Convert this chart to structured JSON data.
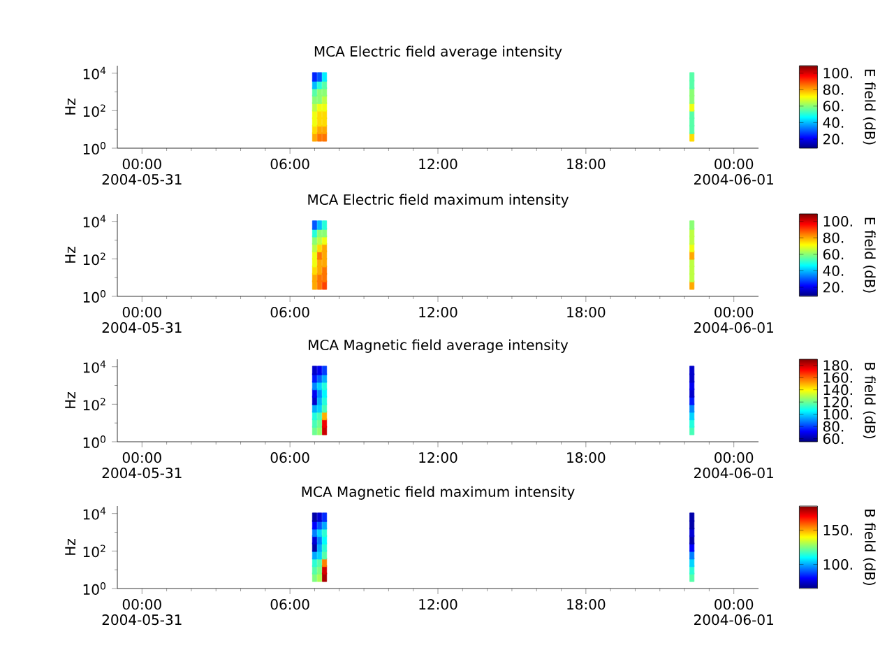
{
  "chart_data": [
    {
      "type": "scatter",
      "title": "MCA  Electric field average intensity",
      "ylabel": "Hz",
      "clabel": "E field (dB)",
      "log": "y",
      "marker": "square",
      "xlim": [
        -1,
        25
      ],
      "xticks": [
        {
          "value": 0,
          "label": "00:00 2004-05-31"
        },
        {
          "value": 6,
          "label": "06:00"
        },
        {
          "value": 12,
          "label": "12:00"
        },
        {
          "value": 18,
          "label": "18:00"
        },
        {
          "value": 24,
          "label": "00:00 2004-06-01"
        }
      ],
      "ylim": [
        1,
        25000
      ],
      "yticks": [
        {
          "value": 1,
          "label": "10$^{0}$"
        },
        {
          "value": 100,
          "label": "10$^{2}$"
        },
        {
          "value": 10000,
          "label": "10$^{4}$"
        }
      ],
      "clim": [
        9,
        109
      ],
      "cticks": [
        {
          "value": 20,
          "label": "20."
        },
        {
          "value": 40,
          "label": "40."
        },
        {
          "value": 60,
          "label": "60."
        },
        {
          "value": 80,
          "label": "80."
        },
        {
          "value": 100,
          "label": "100."
        }
      ],
      "x": [
        7.0,
        7.0,
        7.0,
        7.0,
        7.0,
        7.0,
        7.0,
        7.0,
        7.0,
        7.2,
        7.2,
        7.2,
        7.2,
        7.2,
        7.2,
        7.2,
        7.2,
        7.2,
        7.4,
        7.4,
        7.4,
        7.4,
        7.4,
        7.4,
        7.4,
        7.4,
        7.4,
        22.3,
        22.3,
        22.3,
        22.3,
        22.3,
        22.3,
        22.3,
        22.3,
        22.3
      ],
      "values": [
        4,
        10,
        25,
        63,
        160,
        400,
        1000,
        2500,
        6300,
        4,
        10,
        25,
        63,
        160,
        400,
        1000,
        2500,
        6300,
        4,
        10,
        25,
        63,
        160,
        400,
        1000,
        2500,
        6300,
        4,
        10,
        25,
        63,
        160,
        400,
        1000,
        2500,
        6300
      ],
      "cvalues": [
        80,
        75,
        70,
        70,
        65,
        60,
        55,
        40,
        25,
        85,
        80,
        75,
        75,
        70,
        60,
        60,
        50,
        30,
        85,
        80,
        75,
        75,
        70,
        65,
        60,
        55,
        45,
        75,
        55,
        55,
        55,
        70,
        60,
        60,
        55,
        55
      ]
    },
    {
      "type": "scatter",
      "title": "MCA  Electric field maximum intensity",
      "ylabel": "Hz",
      "clabel": "E field (dB)",
      "log": "y",
      "marker": "square",
      "xlim": [
        -1,
        25
      ],
      "xticks": [
        {
          "value": 0,
          "label": "00:00 2004-05-31"
        },
        {
          "value": 6,
          "label": "06:00"
        },
        {
          "value": 12,
          "label": "12:00"
        },
        {
          "value": 18,
          "label": "18:00"
        },
        {
          "value": 24,
          "label": "00:00 2004-06-01"
        }
      ],
      "ylim": [
        1,
        25000
      ],
      "yticks": [
        {
          "value": 1,
          "label": "10$^{0}$"
        },
        {
          "value": 100,
          "label": "10$^{2}$"
        },
        {
          "value": 10000,
          "label": "10$^{4}$"
        }
      ],
      "clim": [
        9,
        109
      ],
      "cticks": [
        {
          "value": 20,
          "label": "20."
        },
        {
          "value": 40,
          "label": "40."
        },
        {
          "value": 60,
          "label": "60."
        },
        {
          "value": 80,
          "label": "80."
        },
        {
          "value": 100,
          "label": "100."
        }
      ],
      "x": [
        7.0,
        7.0,
        7.0,
        7.0,
        7.0,
        7.0,
        7.0,
        7.0,
        7.0,
        7.2,
        7.2,
        7.2,
        7.2,
        7.2,
        7.2,
        7.2,
        7.2,
        7.2,
        7.4,
        7.4,
        7.4,
        7.4,
        7.4,
        7.4,
        7.4,
        7.4,
        7.4,
        22.3,
        22.3,
        22.3,
        22.3,
        22.3,
        22.3,
        22.3,
        22.3,
        22.3
      ],
      "values": [
        4,
        10,
        25,
        63,
        160,
        400,
        1000,
        2500,
        6300,
        4,
        10,
        25,
        63,
        160,
        400,
        1000,
        2500,
        6300,
        4,
        10,
        25,
        63,
        160,
        400,
        1000,
        2500,
        6300,
        4,
        10,
        25,
        63,
        160,
        400,
        1000,
        2500,
        6300
      ],
      "cvalues": [
        80,
        80,
        75,
        70,
        70,
        65,
        60,
        50,
        30,
        85,
        85,
        80,
        80,
        85,
        75,
        65,
        60,
        40,
        90,
        85,
        85,
        80,
        80,
        80,
        70,
        60,
        50,
        80,
        65,
        65,
        65,
        80,
        70,
        65,
        65,
        60
      ]
    },
    {
      "type": "scatter",
      "title": "MCA  Magnetic field average intensity",
      "ylabel": "Hz",
      "clabel": "B field (dB)",
      "log": "y",
      "marker": "square",
      "xlim": [
        -1,
        25
      ],
      "xticks": [
        {
          "value": 0,
          "label": "00:00 2004-05-31"
        },
        {
          "value": 6,
          "label": "06:00"
        },
        {
          "value": 12,
          "label": "12:00"
        },
        {
          "value": 18,
          "label": "18:00"
        },
        {
          "value": 24,
          "label": "00:00 2004-06-01"
        }
      ],
      "ylim": [
        1,
        25000
      ],
      "yticks": [
        {
          "value": 1,
          "label": "10$^{0}$"
        },
        {
          "value": 100,
          "label": "10$^{2}$"
        },
        {
          "value": 10000,
          "label": "10$^{4}$"
        }
      ],
      "clim": [
        55,
        190
      ],
      "cticks": [
        {
          "value": 60,
          "label": "60."
        },
        {
          "value": 80,
          "label": "80."
        },
        {
          "value": 100,
          "label": "100."
        },
        {
          "value": 120,
          "label": "120."
        },
        {
          "value": 140,
          "label": "140."
        },
        {
          "value": 160,
          "label": "160."
        },
        {
          "value": 180,
          "label": "180."
        }
      ],
      "x": [
        7.0,
        7.0,
        7.0,
        7.0,
        7.0,
        7.0,
        7.0,
        7.0,
        7.0,
        7.2,
        7.2,
        7.2,
        7.2,
        7.2,
        7.2,
        7.2,
        7.2,
        7.2,
        7.4,
        7.4,
        7.4,
        7.4,
        7.4,
        7.4,
        7.4,
        7.4,
        7.4,
        22.3,
        22.3,
        22.3,
        22.3,
        22.3,
        22.3,
        22.3,
        22.3,
        22.3
      ],
      "values": [
        4,
        10,
        25,
        63,
        160,
        400,
        1000,
        2500,
        6300,
        4,
        10,
        25,
        63,
        160,
        400,
        1000,
        2500,
        6300,
        4,
        10,
        25,
        63,
        160,
        400,
        1000,
        2500,
        6300,
        4,
        10,
        25,
        63,
        160,
        400,
        1000,
        2500,
        6300
      ],
      "cvalues": [
        120,
        115,
        110,
        95,
        65,
        70,
        90,
        75,
        65,
        125,
        120,
        115,
        100,
        95,
        90,
        100,
        85,
        70,
        180,
        175,
        150,
        115,
        110,
        105,
        110,
        95,
        80,
        115,
        110,
        100,
        90,
        75,
        65,
        70,
        65,
        65
      ]
    },
    {
      "type": "scatter",
      "title": "MCA  Magnetic field maximum intensity",
      "ylabel": "Hz",
      "clabel": "B field (dB)",
      "log": "y",
      "marker": "square",
      "xlim": [
        -1,
        25
      ],
      "xticks": [
        {
          "value": 0,
          "label": "00:00 2004-05-31"
        },
        {
          "value": 6,
          "label": "06:00"
        },
        {
          "value": 12,
          "label": "12:00"
        },
        {
          "value": 18,
          "label": "18:00"
        },
        {
          "value": 24,
          "label": "00:00 2004-06-01"
        }
      ],
      "ylim": [
        1,
        25000
      ],
      "yticks": [
        {
          "value": 1,
          "label": "10$^{0}$"
        },
        {
          "value": 100,
          "label": "10$^{2}$"
        },
        {
          "value": 10000,
          "label": "10$^{4}$"
        }
      ],
      "clim": [
        65,
        185
      ],
      "cticks": [
        {
          "value": 100,
          "label": "100."
        },
        {
          "value": 150,
          "label": "150."
        }
      ],
      "x": [
        7.0,
        7.0,
        7.0,
        7.0,
        7.0,
        7.0,
        7.0,
        7.0,
        7.0,
        7.2,
        7.2,
        7.2,
        7.2,
        7.2,
        7.2,
        7.2,
        7.2,
        7.2,
        7.4,
        7.4,
        7.4,
        7.4,
        7.4,
        7.4,
        7.4,
        7.4,
        7.4,
        22.3,
        22.3,
        22.3,
        22.3,
        22.3,
        22.3,
        22.3,
        22.3,
        22.3
      ],
      "values": [
        4,
        10,
        25,
        63,
        160,
        400,
        1000,
        2500,
        6300,
        4,
        10,
        25,
        63,
        160,
        400,
        1000,
        2500,
        6300,
        4,
        10,
        25,
        63,
        160,
        400,
        1000,
        2500,
        6300,
        4,
        10,
        25,
        63,
        160,
        400,
        1000,
        2500,
        6300
      ],
      "cvalues": [
        125,
        120,
        115,
        100,
        70,
        75,
        95,
        80,
        70,
        130,
        125,
        120,
        105,
        100,
        95,
        105,
        90,
        75,
        180,
        175,
        155,
        120,
        115,
        110,
        115,
        100,
        85,
        120,
        115,
        105,
        95,
        80,
        70,
        75,
        70,
        70
      ]
    }
  ]
}
